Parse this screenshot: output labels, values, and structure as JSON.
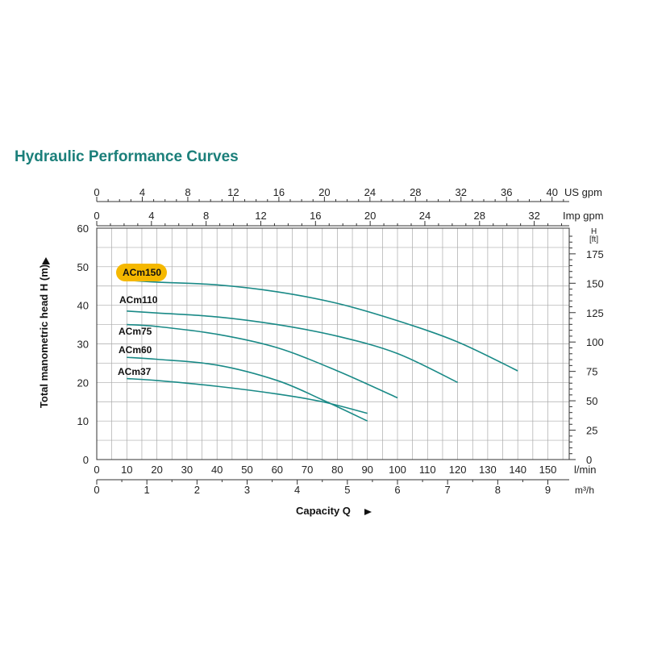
{
  "title": "Hydraulic Performance Curves",
  "chart_data": {
    "type": "line",
    "x_unit": "l/min",
    "y_unit_left": "m",
    "xlim": [
      0,
      160
    ],
    "ylim": [
      0,
      60
    ],
    "grid": true,
    "xlabel": "Capacity Q",
    "ylabel": "Total manometric head H (m)",
    "x_axes": {
      "l_min": {
        "unit": "l/min",
        "ticks": [
          0,
          10,
          20,
          30,
          40,
          50,
          60,
          70,
          80,
          90,
          100,
          110,
          120,
          130,
          140,
          150
        ]
      },
      "m3h": {
        "unit": "m³/h",
        "ticks": [
          0,
          1,
          2,
          3,
          4,
          5,
          6,
          7,
          8,
          9
        ]
      },
      "us_gpm": {
        "unit": "US gpm",
        "ticks": [
          0,
          4,
          8,
          12,
          16,
          20,
          24,
          28,
          32,
          36,
          40
        ]
      },
      "imp_gpm": {
        "unit": "Imp gpm",
        "ticks": [
          0,
          4,
          8,
          12,
          16,
          20,
          24,
          28,
          32
        ]
      }
    },
    "y_axes": {
      "left_m": {
        "unit": "m",
        "ticks": [
          0,
          10,
          20,
          30,
          40,
          50,
          60
        ]
      },
      "right_ft": {
        "unit_lines": [
          "H",
          "[ft]"
        ],
        "ticks": [
          0,
          25,
          50,
          75,
          100,
          125,
          150,
          175
        ]
      }
    },
    "series": [
      {
        "name": "ACm150",
        "highlight": true,
        "points": [
          [
            10,
            46.5
          ],
          [
            20,
            46.0
          ],
          [
            40,
            45.3
          ],
          [
            60,
            43.5
          ],
          [
            80,
            40.5
          ],
          [
            100,
            36.0
          ],
          [
            120,
            30.5
          ],
          [
            140,
            23.0
          ]
        ]
      },
      {
        "name": "ACm110",
        "points": [
          [
            10,
            38.5
          ],
          [
            20,
            38.0
          ],
          [
            40,
            37.0
          ],
          [
            60,
            35.0
          ],
          [
            80,
            32.0
          ],
          [
            100,
            27.5
          ],
          [
            120,
            20.0
          ]
        ]
      },
      {
        "name": "ACm75",
        "points": [
          [
            10,
            35.0
          ],
          [
            20,
            34.5
          ],
          [
            40,
            32.5
          ],
          [
            60,
            29.0
          ],
          [
            80,
            23.0
          ],
          [
            100,
            16.0
          ]
        ]
      },
      {
        "name": "ACm60",
        "points": [
          [
            10,
            26.5
          ],
          [
            20,
            26.0
          ],
          [
            40,
            24.5
          ],
          [
            60,
            20.5
          ],
          [
            75,
            15.5
          ],
          [
            90,
            10.0
          ]
        ]
      },
      {
        "name": "ACm37",
        "points": [
          [
            10,
            21.0
          ],
          [
            20,
            20.5
          ],
          [
            40,
            19.0
          ],
          [
            60,
            17.0
          ],
          [
            75,
            15.0
          ],
          [
            90,
            12.0
          ]
        ]
      }
    ],
    "colors": {
      "curve": "#1a8a87",
      "highlight": "#f5b800",
      "grid": "#aaaaaa",
      "title": "#1b7f7a"
    }
  }
}
